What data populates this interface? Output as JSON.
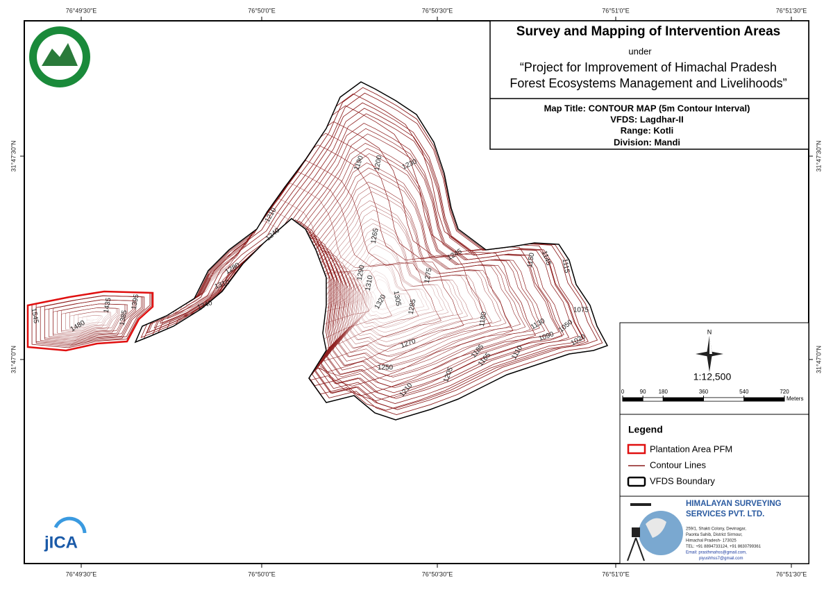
{
  "graticule": {
    "top": [
      "76°49'30\"E",
      "76°50'0\"E",
      "76°50'30\"E",
      "76°51'0\"E",
      "76°51'30\"E"
    ],
    "bottom": [
      "76°49'30\"E",
      "76°50'0\"E",
      "76°50'30\"E",
      "76°51'0\"E",
      "76°51'30\"E"
    ],
    "left": [
      "31°47'30\"N",
      "31°47'0\"N"
    ],
    "right": [
      "31°47'30\"N",
      "31°47'0\"N"
    ]
  },
  "title_block": {
    "title": "Survey and Mapping of Intervention Areas",
    "under": "under",
    "project_lines": [
      "“Project for Improvement of Himachal Pradesh",
      "Forest Ecosystems Management and Livelihoods”"
    ]
  },
  "map_info": {
    "map_title": "Map Title: CONTOUR MAP (5m Contour Interval)",
    "vfds": "VFDS: Lagdhar-II",
    "range": "Range: Kotli",
    "division": "Division: Mandi"
  },
  "north_arrow": "N",
  "scale": {
    "ratio": "1:12,500",
    "ticks": [
      0,
      90,
      180,
      360,
      540,
      720
    ],
    "units": "Meters"
  },
  "legend": {
    "title": "Legend",
    "items": [
      "Plantation Area PFM",
      "Contour Lines",
      "VFDS Boundary"
    ]
  },
  "company": {
    "name_lines": [
      "HIMALAYAN SURVEYING",
      "SERVICES PVT. LTD."
    ],
    "address": [
      "259/1, Shakti Colony, Devinagar,",
      "Paonta Sahib, District Sirmour,",
      "Himachal Pradesh- 173025",
      "TEL: +91 8894733124, +91 8630799361",
      "Email: prasthmahss@gmail.com,",
      "piyushhss7@gmail.com"
    ]
  },
  "logo": "jICA",
  "contour_labels": [
    1190,
    1200,
    1230,
    1210,
    1240,
    1265,
    1280,
    1310,
    1290,
    1310,
    1340,
    1245,
    1275,
    1320,
    1305,
    1285,
    1150,
    1145,
    1115,
    1180,
    1075,
    1130,
    1050,
    1090,
    1020,
    1270,
    1185,
    1165,
    1110,
    1250,
    1205,
    1210,
    1545,
    1480,
    1435,
    1385,
    1395
  ]
}
